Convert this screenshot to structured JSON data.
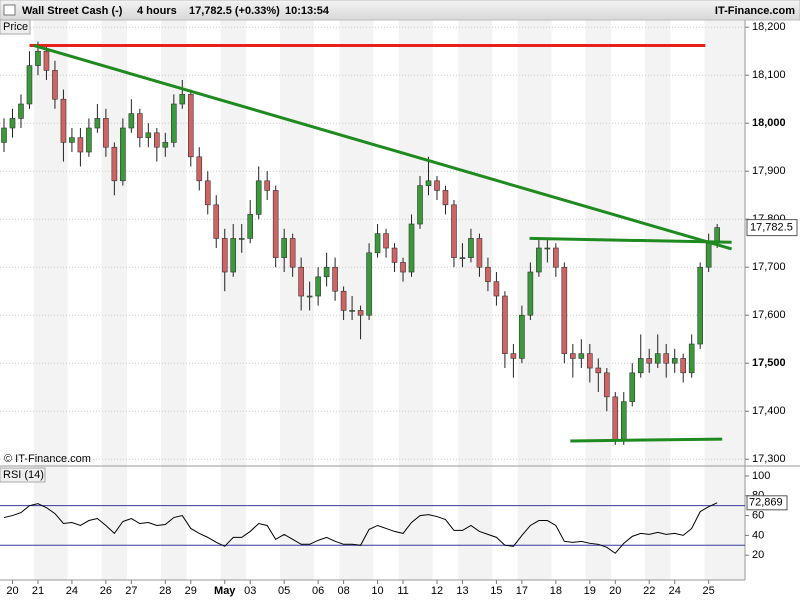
{
  "header": {
    "instrument": "Wall Street Cash (-)",
    "interval": "4 hours",
    "quote": "17,782.5 (+0.33%)",
    "time": "10:13:54",
    "brand": "IT-Finance.com"
  },
  "chart_data": [
    {
      "type": "candlestick",
      "title": "Price",
      "watermark": "© IT-Finance.com",
      "up_color": "#3a9a3a",
      "down_color": "#d06464",
      "grid": true,
      "categories": [
        null,
        "20",
        null,
        null,
        "21",
        null,
        null,
        null,
        "24",
        null,
        null,
        null,
        "26",
        null,
        null,
        "27",
        null,
        null,
        null,
        "28",
        null,
        null,
        "29",
        null,
        null,
        null,
        "May",
        null,
        null,
        "03",
        null,
        null,
        null,
        "05",
        null,
        null,
        null,
        "06",
        null,
        null,
        "08",
        null,
        null,
        null,
        "10",
        null,
        null,
        "11",
        null,
        null,
        null,
        "12",
        null,
        null,
        "13",
        null,
        null,
        null,
        "15",
        null,
        null,
        "17",
        null,
        null,
        null,
        "18",
        null,
        null,
        null,
        "19",
        null,
        null,
        "20",
        null,
        null,
        null,
        "22",
        null,
        null,
        "24",
        null,
        null,
        null,
        "25",
        null
      ],
      "open": [
        17960,
        17990,
        18010,
        18040,
        18120,
        18150,
        18110,
        18050,
        17960,
        17970,
        17940,
        17990,
        18010,
        17950,
        17880,
        17990,
        18020,
        17970,
        17980,
        17950,
        17960,
        18040,
        18060,
        17930,
        17880,
        17830,
        17760,
        17690,
        17760,
        17760,
        17810,
        17880,
        17860,
        17720,
        17760,
        17700,
        17640,
        17640,
        17680,
        17700,
        17650,
        17610,
        17610,
        17600,
        17730,
        17770,
        17740,
        17710,
        17690,
        17790,
        17870,
        17880,
        17860,
        17830,
        17720,
        17720,
        17760,
        17700,
        17670,
        17640,
        17520,
        17510,
        17600,
        17690,
        17740,
        17740,
        17700,
        17520,
        17510,
        17520,
        17490,
        17480,
        17430,
        17340,
        17420,
        17480,
        17510,
        17500,
        17520,
        17500,
        17510,
        17480,
        17540,
        17700,
        17750
      ],
      "high": [
        18010,
        18030,
        18060,
        18150,
        18170,
        18160,
        18130,
        18070,
        17990,
        17990,
        18010,
        18040,
        18030,
        17960,
        18010,
        18050,
        18030,
        18000,
        17990,
        17980,
        18060,
        18090,
        18070,
        17950,
        17900,
        17850,
        17780,
        17790,
        17790,
        17840,
        17910,
        17900,
        17870,
        17780,
        17770,
        17720,
        17670,
        17700,
        17730,
        17720,
        17660,
        17640,
        17620,
        17750,
        17790,
        17780,
        17750,
        17720,
        17810,
        17890,
        17930,
        17890,
        17870,
        17840,
        17750,
        17780,
        17770,
        17720,
        17690,
        17650,
        17540,
        17620,
        17710,
        17760,
        17760,
        17750,
        17710,
        17540,
        17550,
        17540,
        17510,
        17490,
        17440,
        17440,
        17500,
        17560,
        17530,
        17560,
        17540,
        17530,
        17520,
        17560,
        17710,
        17770,
        17790
      ],
      "low": [
        17940,
        17970,
        17990,
        18030,
        18100,
        18090,
        18030,
        17920,
        17940,
        17910,
        17930,
        17980,
        17930,
        17850,
        17870,
        17980,
        17950,
        17950,
        17920,
        17930,
        17950,
        18030,
        17910,
        17860,
        17810,
        17740,
        17650,
        17680,
        17730,
        17750,
        17800,
        17840,
        17700,
        17690,
        17680,
        17610,
        17610,
        17620,
        17660,
        17630,
        17590,
        17590,
        17550,
        17590,
        17720,
        17720,
        17690,
        17670,
        17680,
        17780,
        17850,
        17840,
        17810,
        17700,
        17700,
        17710,
        17680,
        17650,
        17620,
        17490,
        17470,
        17500,
        17590,
        17680,
        17710,
        17680,
        17500,
        17470,
        17490,
        17460,
        17440,
        17400,
        17330,
        17330,
        17410,
        17470,
        17480,
        17490,
        17470,
        17480,
        17460,
        17470,
        17530,
        17690,
        17740
      ],
      "close": [
        17990,
        18010,
        18040,
        18120,
        18150,
        18110,
        18050,
        17960,
        17970,
        17940,
        17990,
        18010,
        17950,
        17880,
        17990,
        18020,
        17970,
        17980,
        17950,
        17960,
        18040,
        18060,
        17930,
        17880,
        17830,
        17760,
        17690,
        17760,
        17760,
        17810,
        17880,
        17860,
        17720,
        17760,
        17700,
        17640,
        17640,
        17680,
        17700,
        17650,
        17610,
        17610,
        17600,
        17730,
        17770,
        17740,
        17710,
        17690,
        17790,
        17870,
        17880,
        17860,
        17830,
        17720,
        17720,
        17760,
        17700,
        17670,
        17640,
        17520,
        17510,
        17600,
        17690,
        17740,
        17740,
        17700,
        17520,
        17510,
        17520,
        17490,
        17480,
        17430,
        17340,
        17420,
        17480,
        17510,
        17500,
        17520,
        17500,
        17510,
        17480,
        17540,
        17700,
        17750,
        17782.5
      ],
      "last_label": "17,782.5",
      "ylim": [
        17288,
        18215
      ],
      "yticks": [
        {
          "value": 17300,
          "label": "17,300"
        },
        {
          "value": 17400,
          "label": "17,400"
        },
        {
          "value": 17500,
          "label": "17,500"
        },
        {
          "value": 17600,
          "label": "17,600"
        },
        {
          "value": 17700,
          "label": "17,700"
        },
        {
          "value": 17800,
          "label": "17,800"
        },
        {
          "value": 17900,
          "label": "17,900"
        },
        {
          "value": 18000,
          "label": "18,000"
        },
        {
          "value": 18100,
          "label": "18,100"
        },
        {
          "value": 18200,
          "label": "18,200"
        }
      ],
      "trendlines": [
        {
          "color": "#e8201c",
          "from": [
            3,
            18162
          ],
          "to": [
            82.6,
            18162
          ]
        },
        {
          "color": "#1f8a1f",
          "from": [
            3.5,
            18162
          ],
          "to": [
            85.7,
            17738
          ]
        },
        {
          "color": "#1f8a1f",
          "from": [
            61.9,
            17760
          ],
          "to": [
            85.7,
            17752
          ]
        },
        {
          "color": "#1f8a1f",
          "from": [
            66.7,
            17338
          ],
          "to": [
            84.6,
            17342
          ]
        }
      ]
    },
    {
      "type": "line",
      "title": "RSI (14)",
      "color": "#000000",
      "level_color": "#3a3aa0",
      "values": [
        58,
        60,
        63,
        70,
        72,
        68,
        62,
        52,
        53,
        50,
        55,
        57,
        50,
        42,
        54,
        57,
        52,
        53,
        50,
        51,
        58,
        60,
        47,
        42,
        38,
        33,
        29,
        38,
        38,
        44,
        52,
        50,
        36,
        41,
        36,
        31,
        31,
        35,
        38,
        34,
        31,
        31,
        30,
        46,
        50,
        47,
        44,
        42,
        53,
        60,
        61,
        59,
        56,
        45,
        45,
        50,
        44,
        41,
        38,
        30,
        29,
        40,
        50,
        55,
        55,
        50,
        34,
        33,
        34,
        32,
        31,
        28,
        22,
        32,
        39,
        42,
        41,
        43,
        41,
        42,
        40,
        47,
        64,
        69,
        72.869
      ],
      "last_label": "72,869",
      "levels": [
        30,
        70
      ],
      "ylim": [
        -3,
        108
      ],
      "yticks": [
        20,
        40,
        60,
        80,
        100
      ]
    }
  ]
}
